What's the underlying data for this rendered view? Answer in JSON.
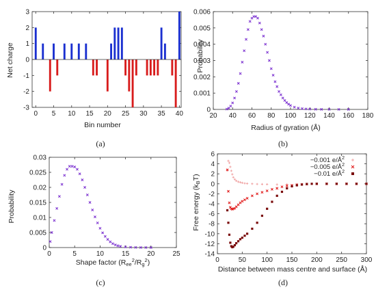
{
  "panels": {
    "a": {
      "caption": "(a)"
    },
    "b": {
      "caption": "(b)"
    },
    "c": {
      "caption": "(c)"
    },
    "d": {
      "caption": "(d)"
    }
  },
  "chart_data": [
    {
      "id": "a",
      "type": "bar",
      "xlabel": "Bin number",
      "ylabel": "Net charge",
      "xlim": [
        -1,
        40.5
      ],
      "ylim": [
        -3,
        3
      ],
      "xticks": [
        0,
        5,
        10,
        15,
        20,
        25,
        30,
        35,
        40
      ],
      "yticks": [
        -3,
        -2,
        -1,
        0,
        1,
        2,
        3
      ],
      "colors": {
        "positive": "#1a2fd0",
        "negative": "#d81c1c"
      },
      "x": [
        0,
        1,
        2,
        3,
        4,
        5,
        6,
        7,
        8,
        9,
        10,
        11,
        12,
        13,
        14,
        15,
        16,
        17,
        18,
        19,
        20,
        21,
        22,
        23,
        24,
        25,
        26,
        27,
        28,
        29,
        30,
        31,
        32,
        33,
        34,
        35,
        36,
        37,
        38,
        39,
        40
      ],
      "values": [
        2,
        0,
        1,
        0,
        -2,
        1,
        -1,
        0,
        1,
        0,
        1,
        0,
        1,
        0,
        1,
        0,
        -1,
        -1,
        0,
        0,
        -2,
        1,
        2,
        2,
        2,
        -1,
        -2,
        -3,
        -1,
        0,
        0,
        -1,
        -1,
        -1,
        -1,
        2,
        1,
        0,
        -1,
        -3,
        3
      ]
    },
    {
      "id": "b",
      "type": "scatter",
      "xlabel": "Radius of gyration (Å)",
      "ylabel": "Probability",
      "xlim": [
        20,
        180
      ],
      "ylim": [
        0,
        0.006
      ],
      "xticks": [
        20,
        40,
        60,
        80,
        100,
        120,
        140,
        160,
        180
      ],
      "yticks": [
        "0",
        "0.001",
        "0.002",
        "0.003",
        "0.004",
        "0.005",
        "0.006"
      ],
      "color": "#7a2fd0",
      "x": [
        34,
        36,
        38,
        40,
        42,
        44,
        46,
        48,
        50,
        52,
        54,
        56,
        58,
        60,
        62,
        64,
        66,
        68,
        70,
        72,
        74,
        76,
        78,
        80,
        82,
        84,
        86,
        88,
        90,
        92,
        94,
        96,
        98,
        100,
        104,
        108,
        112,
        116,
        120,
        126,
        132,
        140,
        150,
        160
      ],
      "y": [
        2e-05,
        8e-05,
        0.0002,
        0.0004,
        0.0007,
        0.0011,
        0.0016,
        0.0022,
        0.0029,
        0.0036,
        0.0043,
        0.0049,
        0.0054,
        0.0056,
        0.0057,
        0.0057,
        0.0056,
        0.0053,
        0.0049,
        0.0045,
        0.004,
        0.0035,
        0.003,
        0.0025,
        0.0021,
        0.0017,
        0.0014,
        0.0011,
        0.0009,
        0.0007,
        0.00055,
        0.00042,
        0.00032,
        0.00024,
        0.00014,
        8e-05,
        5e-05,
        3e-05,
        2e-05,
        1e-05,
        5e-06,
        2e-06,
        1e-06,
        0
      ]
    },
    {
      "id": "c",
      "type": "scatter",
      "xlabel": "Shape factor (R",
      "xlabel_sub1": "ee",
      "xlabel_sup1": "2",
      "xlabel_mid": "/R",
      "xlabel_sub2": "g",
      "xlabel_sup2": "2",
      "xlabel_end": ")",
      "ylabel": "Probability",
      "xlim": [
        0,
        25
      ],
      "ylim": [
        0,
        0.03
      ],
      "xticks": [
        0,
        5,
        10,
        15,
        20,
        25
      ],
      "yticks": [
        "0",
        "0.005",
        "0.01",
        "0.015",
        "0.02",
        "0.025",
        "0.03"
      ],
      "color": "#7a2fd0",
      "x": [
        0.2,
        0.5,
        1,
        1.5,
        2,
        2.5,
        3,
        3.5,
        4,
        4.5,
        5,
        5.5,
        6,
        6.5,
        7,
        7.5,
        8,
        8.5,
        9,
        9.5,
        10,
        10.5,
        11,
        11.5,
        12,
        12.5,
        13,
        13.5,
        14,
        15,
        16,
        17,
        18,
        19,
        20
      ],
      "y": [
        0.002,
        0.005,
        0.009,
        0.013,
        0.017,
        0.021,
        0.024,
        0.026,
        0.027,
        0.027,
        0.0268,
        0.026,
        0.0245,
        0.0225,
        0.02,
        0.0175,
        0.015,
        0.0125,
        0.0102,
        0.0082,
        0.0064,
        0.0049,
        0.0037,
        0.0027,
        0.0019,
        0.0013,
        0.0009,
        0.0006,
        0.0004,
        0.0002,
        0.0001,
        5e-05,
        2e-05,
        1e-05,
        0
      ]
    },
    {
      "id": "d",
      "type": "scatter",
      "xlabel": "Distance between mass centre and surface (Å)",
      "ylabel": "Free energy (k",
      "ylabel_sub": "B",
      "ylabel_end": "T)",
      "xlim": [
        0,
        300
      ],
      "ylim": [
        -14,
        6
      ],
      "xticks": [
        0,
        50,
        100,
        150,
        200,
        250,
        300
      ],
      "yticks": [
        -14,
        -12,
        -10,
        -8,
        -6,
        -4,
        -2,
        0,
        2,
        4,
        6
      ],
      "legend_position": "top-right",
      "series": [
        {
          "name": "−0.001 e/Å",
          "sup": "2",
          "marker": "plus",
          "color": "#f0a3a3",
          "x": [
            20,
            22,
            24,
            26,
            28,
            30,
            32,
            35,
            38,
            42,
            46,
            50,
            55,
            60,
            70,
            80,
            90,
            100,
            120,
            140,
            160,
            180,
            200,
            220,
            240,
            260,
            280,
            300
          ],
          "y": [
            2.7,
            4.6,
            4.2,
            3.4,
            2.6,
            1.9,
            1.3,
            0.9,
            0.6,
            0.4,
            0.3,
            0.2,
            0.1,
            0.05,
            0,
            -0.05,
            -0.08,
            -0.1,
            -0.15,
            -0.1,
            -0.05,
            0,
            0,
            0,
            0,
            0,
            0,
            0
          ]
        },
        {
          "name": "−0.005 e/Å",
          "sup": "2",
          "marker": "cross",
          "color": "#e01515",
          "x": [
            20,
            22,
            24,
            26,
            28,
            30,
            32,
            35,
            38,
            42,
            46,
            50,
            55,
            60,
            70,
            80,
            90,
            100,
            110,
            120,
            130,
            140,
            150,
            160,
            170,
            180,
            200,
            220,
            240,
            260,
            280,
            300
          ],
          "y": [
            2.8,
            -1.5,
            -3.8,
            -4.7,
            -5,
            -5.1,
            -5,
            -4.9,
            -4.6,
            -4.2,
            -3.8,
            -3.5,
            -3.2,
            -2.9,
            -2.4,
            -2,
            -1.7,
            -1.4,
            -1.1,
            -0.9,
            -0.6,
            -0.4,
            -0.3,
            -0.2,
            -0.1,
            -0.05,
            0,
            0,
            0,
            0,
            0,
            0
          ]
        },
        {
          "name": "−0.01 e/Å",
          "sup": "2",
          "marker": "square",
          "color": "#7a0c0c",
          "x": [
            20,
            22,
            24,
            26,
            28,
            30,
            32,
            35,
            38,
            42,
            46,
            50,
            55,
            60,
            70,
            80,
            90,
            100,
            110,
            120,
            130,
            140,
            150,
            160,
            170,
            180,
            190,
            200,
            220,
            240,
            260,
            280,
            300
          ],
          "y": [
            -5.3,
            -7.8,
            -10.2,
            -11.8,
            -12.5,
            -12.7,
            -12.6,
            -12.3,
            -11.9,
            -11.5,
            -11.1,
            -10.8,
            -10.4,
            -10,
            -9,
            -7.8,
            -6.4,
            -5,
            -3.6,
            -2.4,
            -1.6,
            -0.9,
            -0.5,
            -0.3,
            -0.15,
            -0.05,
            0,
            0,
            0,
            0,
            0,
            0,
            0
          ]
        }
      ]
    }
  ]
}
